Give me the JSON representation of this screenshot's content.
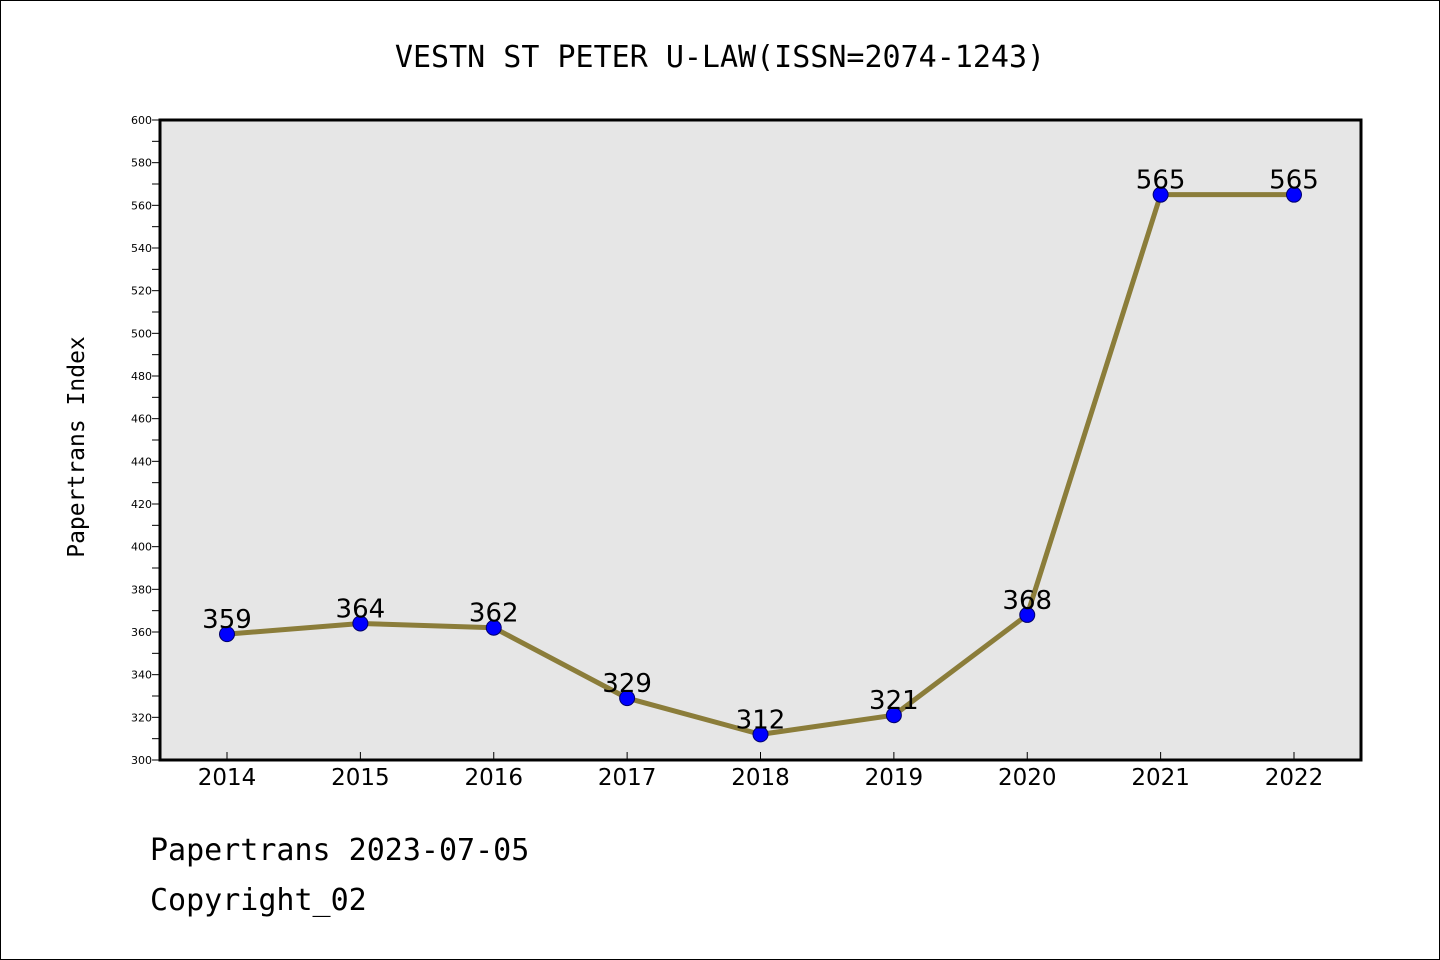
{
  "chart_data": {
    "type": "line",
    "title": "VESTN ST PETER U-LAW(ISSN=2074-1243)",
    "xlabel": "",
    "ylabel": "Papertrans Index",
    "categories": [
      "2014",
      "2015",
      "2016",
      "2017",
      "2018",
      "2019",
      "2020",
      "2021",
      "2022"
    ],
    "values": [
      359,
      364,
      362,
      329,
      312,
      321,
      368,
      565,
      565
    ],
    "ylim": [
      300,
      600
    ],
    "yticks": [
      300,
      320,
      340,
      360,
      380,
      400,
      420,
      440,
      460,
      480,
      500,
      520,
      540,
      560,
      580,
      600
    ],
    "grid": false,
    "legend": "none",
    "colors": {
      "line": "#8b7d3a",
      "marker": "#0000ff",
      "plot_background": "#e6e6e6"
    }
  },
  "footer": {
    "line1": "Papertrans 2023-07-05",
    "line2": "Copyright_02"
  }
}
